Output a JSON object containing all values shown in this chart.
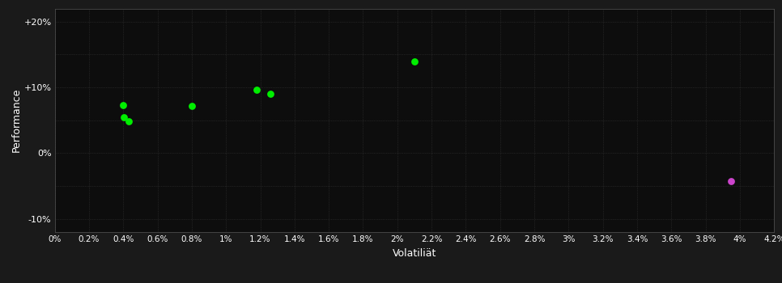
{
  "background_color": "#1a1a1a",
  "plot_bg_color": "#0d0d0d",
  "grid_color": "#3a3a3a",
  "text_color": "#ffffff",
  "xlabel": "Volatiliät",
  "ylabel": "Performance",
  "xlim": [
    0.0,
    0.042
  ],
  "ylim": [
    -0.12,
    0.22
  ],
  "xtick_values": [
    0.0,
    0.002,
    0.004,
    0.006,
    0.008,
    0.01,
    0.012,
    0.014,
    0.016,
    0.018,
    0.02,
    0.022,
    0.024,
    0.026,
    0.028,
    0.03,
    0.032,
    0.034,
    0.036,
    0.038,
    0.04,
    0.042
  ],
  "xtick_labels": [
    "0%",
    "0.2%",
    "0.4%",
    "0.6%",
    "0.8%",
    "1%",
    "1.2%",
    "1.4%",
    "1.6%",
    "1.8%",
    "2%",
    "2.2%",
    "2.4%",
    "2.6%",
    "2.8%",
    "3%",
    "3.2%",
    "3.4%",
    "3.6%",
    "3.8%",
    "4%",
    "4.2%"
  ],
  "ytick_values": [
    -0.1,
    0.0,
    0.1,
    0.2
  ],
  "ytick_labels": [
    "-10%",
    "0%",
    "+10%",
    "+20%"
  ],
  "green_points": [
    [
      0.004,
      0.073
    ],
    [
      0.00405,
      0.055
    ],
    [
      0.0043,
      0.049
    ],
    [
      0.008,
      0.072
    ],
    [
      0.0118,
      0.096
    ],
    [
      0.0126,
      0.09
    ],
    [
      0.021,
      0.14
    ]
  ],
  "magenta_points": [
    [
      0.0395,
      -0.042
    ]
  ],
  "green_color": "#00ee00",
  "magenta_color": "#cc44cc",
  "marker_size": 40
}
